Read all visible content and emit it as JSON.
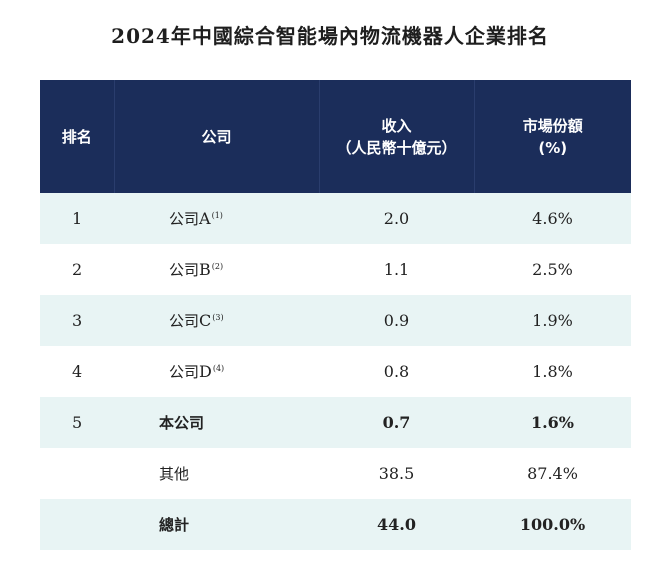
{
  "title": "2024年中國綜合智能場內物流機器人企業排名",
  "headers": {
    "rank": "排名",
    "company": "公司",
    "revenue_line1": "收入",
    "revenue_line2": "（人民幣十億元）",
    "share_line1": "市場份額",
    "share_line2": "(%)"
  },
  "rows": [
    {
      "rank": "1",
      "company_prefix": "公司",
      "company_letter": "A",
      "note": "(1)",
      "revenue": "2.0",
      "share": "4.6%"
    },
    {
      "rank": "2",
      "company_prefix": "公司",
      "company_letter": "B",
      "note": "(2)",
      "revenue": "1.1",
      "share": "2.5%"
    },
    {
      "rank": "3",
      "company_prefix": "公司",
      "company_letter": "C",
      "note": "(3)",
      "revenue": "0.9",
      "share": "1.9%"
    },
    {
      "rank": "4",
      "company_prefix": "公司",
      "company_letter": "D",
      "note": "(4)",
      "revenue": "0.8",
      "share": "1.8%"
    },
    {
      "rank": "5",
      "company": "本公司",
      "revenue": "0.7",
      "share": "1.6%"
    },
    {
      "rank": "",
      "company": "其他",
      "revenue": "38.5",
      "share": "87.4%"
    },
    {
      "rank": "",
      "company": "總計",
      "revenue": "44.0",
      "share": "100.0%"
    }
  ]
}
